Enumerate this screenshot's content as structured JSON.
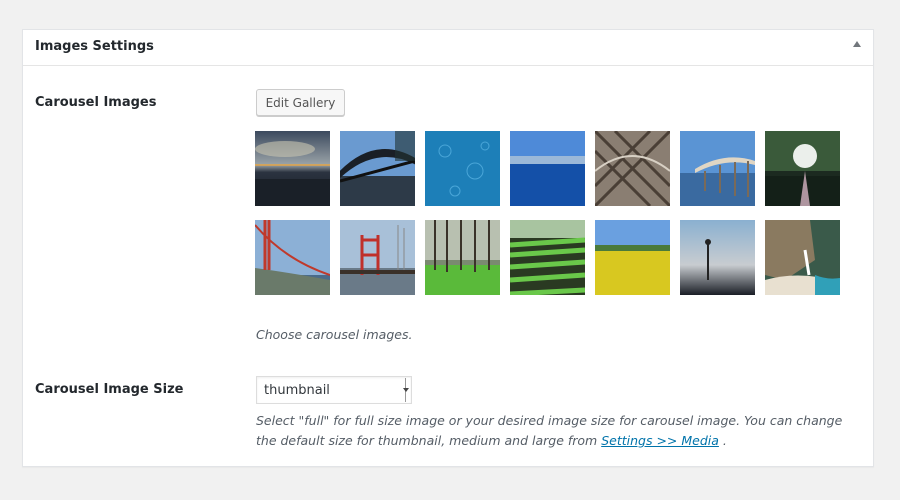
{
  "panel": {
    "title": "Images Settings"
  },
  "carousel_images": {
    "label": "Carousel Images",
    "edit_button": "Edit Gallery",
    "description": "Choose carousel images.",
    "thumbnails": [
      "dusk-sea",
      "steel-bridge",
      "water-ripples",
      "harbor-blue",
      "bridge-cables",
      "pier-lake",
      "sunlit-lake",
      "golden-gate",
      "red-tower-pier",
      "pine-forest",
      "crop-field",
      "yellow-field",
      "foggy-shore",
      "waterfall-cove"
    ]
  },
  "carousel_size": {
    "label": "Carousel Image Size",
    "selected": "thumbnail",
    "description_before": "Select \"full\" for full size image or your desired image size for carousel image. You can change the default size for thumbnail, medium and large from",
    "link_text": "Settings >> Media",
    "description_after": "."
  },
  "colors": {
    "link": "#0073aa",
    "background": "#f1f1f1"
  }
}
